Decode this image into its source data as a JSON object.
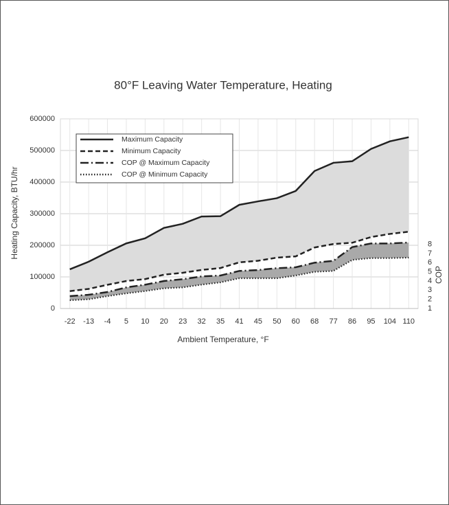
{
  "chart_data": {
    "type": "line",
    "title": "80°F Leaving Water Temperature, Heating",
    "x_label": "Ambient Temperature, °F",
    "y_label": "Heating Capacity, BTU/hr",
    "y2_label": "COP",
    "categories": [
      "-22",
      "-13",
      "-4",
      "5",
      "10",
      "20",
      "23",
      "32",
      "35",
      "41",
      "45",
      "50",
      "60",
      "68",
      "77",
      "86",
      "95",
      "104",
      "110"
    ],
    "ylim": [
      0,
      600000
    ],
    "yticks": [
      0,
      100000,
      200000,
      300000,
      400000,
      500000,
      600000
    ],
    "y2lim": [
      1,
      21.7
    ],
    "y2ticks": [
      1,
      2,
      3,
      4,
      5,
      6,
      7,
      8
    ],
    "grid": true,
    "legend": "upper left",
    "series": [
      {
        "name": "Maximum Capacity",
        "color": "#222222",
        "dash": "solid",
        "fill_color": "#dcdcdc",
        "values": [
          124000,
          148000,
          178000,
          206000,
          222000,
          255000,
          268000,
          291000,
          292000,
          328000,
          339000,
          349000,
          372000,
          435000,
          461000,
          466000,
          505000,
          529000,
          542000
        ]
      },
      {
        "name": "Minimum Capacity",
        "color": "#222222",
        "dash": "dashed",
        "values": [
          55000,
          62000,
          75000,
          87000,
          93000,
          107000,
          113000,
          122000,
          128000,
          146000,
          151000,
          161000,
          165000,
          193000,
          204000,
          208000,
          226000,
          236000,
          243000
        ]
      },
      {
        "name": "COP @ Maximum Capacity",
        "color": "#222222",
        "dash": "dashdot",
        "axis": "y2",
        "fill_color": "#a9a9a9",
        "values": [
          2.35,
          2.5,
          2.8,
          3.3,
          3.6,
          4.0,
          4.2,
          4.5,
          4.6,
          5.1,
          5.2,
          5.4,
          5.5,
          6.0,
          6.2,
          7.7,
          8.1,
          8.1,
          8.2
        ]
      },
      {
        "name": "COP @ Minimum Capacity",
        "color": "#222222",
        "dash": "dotted",
        "axis": "y2",
        "values": [
          1.9,
          2.0,
          2.35,
          2.65,
          2.9,
          3.2,
          3.3,
          3.6,
          3.85,
          4.3,
          4.3,
          4.3,
          4.6,
          5.0,
          5.1,
          6.3,
          6.5,
          6.5,
          6.55
        ]
      }
    ]
  }
}
